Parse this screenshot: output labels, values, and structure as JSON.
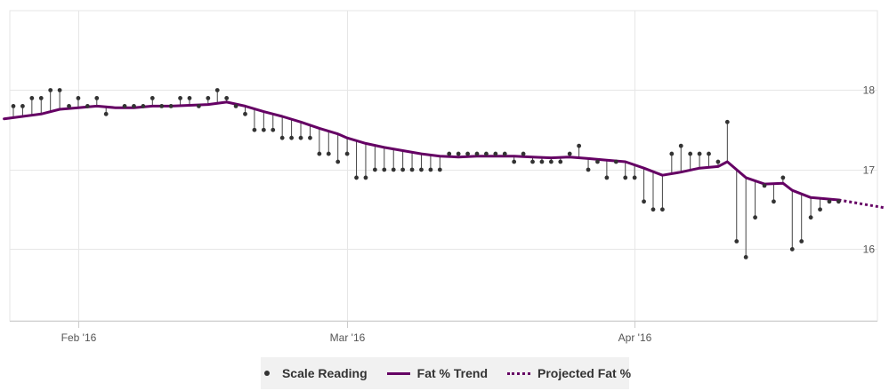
{
  "colors": {
    "trend": "#650064",
    "reading": "#333333",
    "reading_faint": "#cccccc",
    "stem": "#444444",
    "grid": "#e6e6e6",
    "axis": "#cccccc"
  },
  "legend": {
    "reading": "Scale Reading",
    "trend": "Fat % Trend",
    "projected": "Projected Fat %"
  },
  "chart_data": {
    "type": "line",
    "title": "",
    "xlabel": "",
    "ylabel": "",
    "x_range": [
      "2016-01-25",
      "2016-04-27"
    ],
    "ylim": [
      15.1,
      19.0
    ],
    "y_ticks": [
      16,
      17,
      18
    ],
    "x_ticks": [
      {
        "date": "2016-02-01",
        "label": "Feb '16"
      },
      {
        "date": "2016-03-01",
        "label": "Mar '16"
      },
      {
        "date": "2016-04-01",
        "label": "Apr '16"
      }
    ],
    "grid": true,
    "legend_position": "bottom",
    "series": [
      {
        "name": "Scale Reading",
        "type": "scatter",
        "points": [
          [
            "2016-01-25",
            17.8
          ],
          [
            "2016-01-26",
            17.8
          ],
          [
            "2016-01-27",
            17.9
          ],
          [
            "2016-01-28",
            17.9
          ],
          [
            "2016-01-29",
            18.0
          ],
          [
            "2016-01-30",
            18.0
          ],
          [
            "2016-01-31",
            17.8
          ],
          [
            "2016-02-01",
            17.9
          ],
          [
            "2016-02-02",
            17.8
          ],
          [
            "2016-02-03",
            17.9
          ],
          [
            "2016-02-04",
            17.7
          ],
          [
            "2016-02-06",
            17.8
          ],
          [
            "2016-02-07",
            17.8
          ],
          [
            "2016-02-08",
            17.8
          ],
          [
            "2016-02-09",
            17.9
          ],
          [
            "2016-02-10",
            17.8
          ],
          [
            "2016-02-11",
            17.8
          ],
          [
            "2016-02-12",
            17.9
          ],
          [
            "2016-02-13",
            17.9
          ],
          [
            "2016-02-14",
            17.8
          ],
          [
            "2016-02-15",
            17.9
          ],
          [
            "2016-02-16",
            18.0
          ],
          [
            "2016-02-17",
            17.9
          ],
          [
            "2016-02-18",
            17.8
          ],
          [
            "2016-02-19",
            17.7
          ],
          [
            "2016-02-20",
            17.5
          ],
          [
            "2016-02-21",
            17.5
          ],
          [
            "2016-02-22",
            17.5
          ],
          [
            "2016-02-23",
            17.4
          ],
          [
            "2016-02-24",
            17.4
          ],
          [
            "2016-02-25",
            17.4
          ],
          [
            "2016-02-26",
            17.4
          ],
          [
            "2016-02-27",
            17.2
          ],
          [
            "2016-02-28",
            17.2
          ],
          [
            "2016-02-29",
            17.1
          ],
          [
            "2016-03-01",
            17.2
          ],
          [
            "2016-03-02",
            16.9
          ],
          [
            "2016-03-03",
            16.9
          ],
          [
            "2016-03-04",
            17.0
          ],
          [
            "2016-03-05",
            17.0
          ],
          [
            "2016-03-06",
            17.0
          ],
          [
            "2016-03-07",
            17.0
          ],
          [
            "2016-03-08",
            17.0
          ],
          [
            "2016-03-09",
            17.0
          ],
          [
            "2016-03-10",
            17.0
          ],
          [
            "2016-03-11",
            17.0
          ],
          [
            "2016-03-12",
            17.2
          ],
          [
            "2016-03-13",
            17.2
          ],
          [
            "2016-03-14",
            17.2
          ],
          [
            "2016-03-15",
            17.2
          ],
          [
            "2016-03-16",
            17.2
          ],
          [
            "2016-03-17",
            17.2
          ],
          [
            "2016-03-18",
            17.2
          ],
          [
            "2016-03-19",
            17.1
          ],
          [
            "2016-03-20",
            17.2
          ],
          [
            "2016-03-21",
            17.1
          ],
          [
            "2016-03-22",
            17.1
          ],
          [
            "2016-03-23",
            17.1
          ],
          [
            "2016-03-24",
            17.1
          ],
          [
            "2016-03-25",
            17.2
          ],
          [
            "2016-03-26",
            17.3
          ],
          [
            "2016-03-27",
            17.0
          ],
          [
            "2016-03-28",
            17.1
          ],
          [
            "2016-03-29",
            16.9
          ],
          [
            "2016-03-30",
            17.1
          ],
          [
            "2016-03-31",
            16.9
          ],
          [
            "2016-04-01",
            16.9
          ],
          [
            "2016-04-02",
            16.6
          ],
          [
            "2016-04-03",
            16.5
          ],
          [
            "2016-04-04",
            16.5
          ],
          [
            "2016-04-05",
            17.2
          ],
          [
            "2016-04-06",
            17.3
          ],
          [
            "2016-04-07",
            17.2
          ],
          [
            "2016-04-08",
            17.2
          ],
          [
            "2016-04-09",
            17.2
          ],
          [
            "2016-04-10",
            17.1
          ],
          [
            "2016-04-11",
            17.6
          ],
          [
            "2016-04-12",
            16.1
          ],
          [
            "2016-04-13",
            15.9
          ],
          [
            "2016-04-14",
            16.4
          ],
          [
            "2016-04-15",
            16.8
          ],
          [
            "2016-04-16",
            16.6
          ],
          [
            "2016-04-17",
            16.9
          ],
          [
            "2016-04-18",
            16.0
          ],
          [
            "2016-04-19",
            16.1
          ],
          [
            "2016-04-20",
            16.4
          ],
          [
            "2016-04-21",
            16.5
          ],
          [
            "2016-04-22",
            16.6
          ],
          [
            "2016-04-23",
            16.6
          ]
        ]
      },
      {
        "name": "Fat % Trend",
        "type": "line",
        "points": [
          [
            "2016-01-24",
            17.64
          ],
          [
            "2016-01-26",
            17.67
          ],
          [
            "2016-01-28",
            17.7
          ],
          [
            "2016-01-30",
            17.76
          ],
          [
            "2016-02-01",
            17.78
          ],
          [
            "2016-02-03",
            17.8
          ],
          [
            "2016-02-05",
            17.78
          ],
          [
            "2016-02-07",
            17.78
          ],
          [
            "2016-02-09",
            17.8
          ],
          [
            "2016-02-11",
            17.8
          ],
          [
            "2016-02-13",
            17.81
          ],
          [
            "2016-02-15",
            17.82
          ],
          [
            "2016-02-17",
            17.85
          ],
          [
            "2016-02-19",
            17.8
          ],
          [
            "2016-02-21",
            17.73
          ],
          [
            "2016-02-23",
            17.67
          ],
          [
            "2016-02-25",
            17.6
          ],
          [
            "2016-02-27",
            17.52
          ],
          [
            "2016-02-29",
            17.45
          ],
          [
            "2016-03-01",
            17.4
          ],
          [
            "2016-03-03",
            17.33
          ],
          [
            "2016-03-05",
            17.28
          ],
          [
            "2016-03-07",
            17.24
          ],
          [
            "2016-03-09",
            17.2
          ],
          [
            "2016-03-11",
            17.17
          ],
          [
            "2016-03-13",
            17.16
          ],
          [
            "2016-03-15",
            17.17
          ],
          [
            "2016-03-17",
            17.17
          ],
          [
            "2016-03-19",
            17.17
          ],
          [
            "2016-03-21",
            17.16
          ],
          [
            "2016-03-23",
            17.15
          ],
          [
            "2016-03-25",
            17.16
          ],
          [
            "2016-03-27",
            17.14
          ],
          [
            "2016-03-29",
            17.12
          ],
          [
            "2016-03-31",
            17.1
          ],
          [
            "2016-04-02",
            17.02
          ],
          [
            "2016-04-04",
            16.93
          ],
          [
            "2016-04-06",
            16.97
          ],
          [
            "2016-04-08",
            17.02
          ],
          [
            "2016-04-10",
            17.04
          ],
          [
            "2016-04-11",
            17.1
          ],
          [
            "2016-04-13",
            16.9
          ],
          [
            "2016-04-15",
            16.82
          ],
          [
            "2016-04-17",
            16.83
          ],
          [
            "2016-04-18",
            16.74
          ],
          [
            "2016-04-20",
            16.65
          ],
          [
            "2016-04-23",
            16.62
          ]
        ]
      },
      {
        "name": "Projected Fat %",
        "type": "line",
        "dashed": true,
        "points": [
          [
            "2016-04-23",
            16.62
          ],
          [
            "2016-04-28",
            16.52
          ]
        ]
      }
    ]
  }
}
